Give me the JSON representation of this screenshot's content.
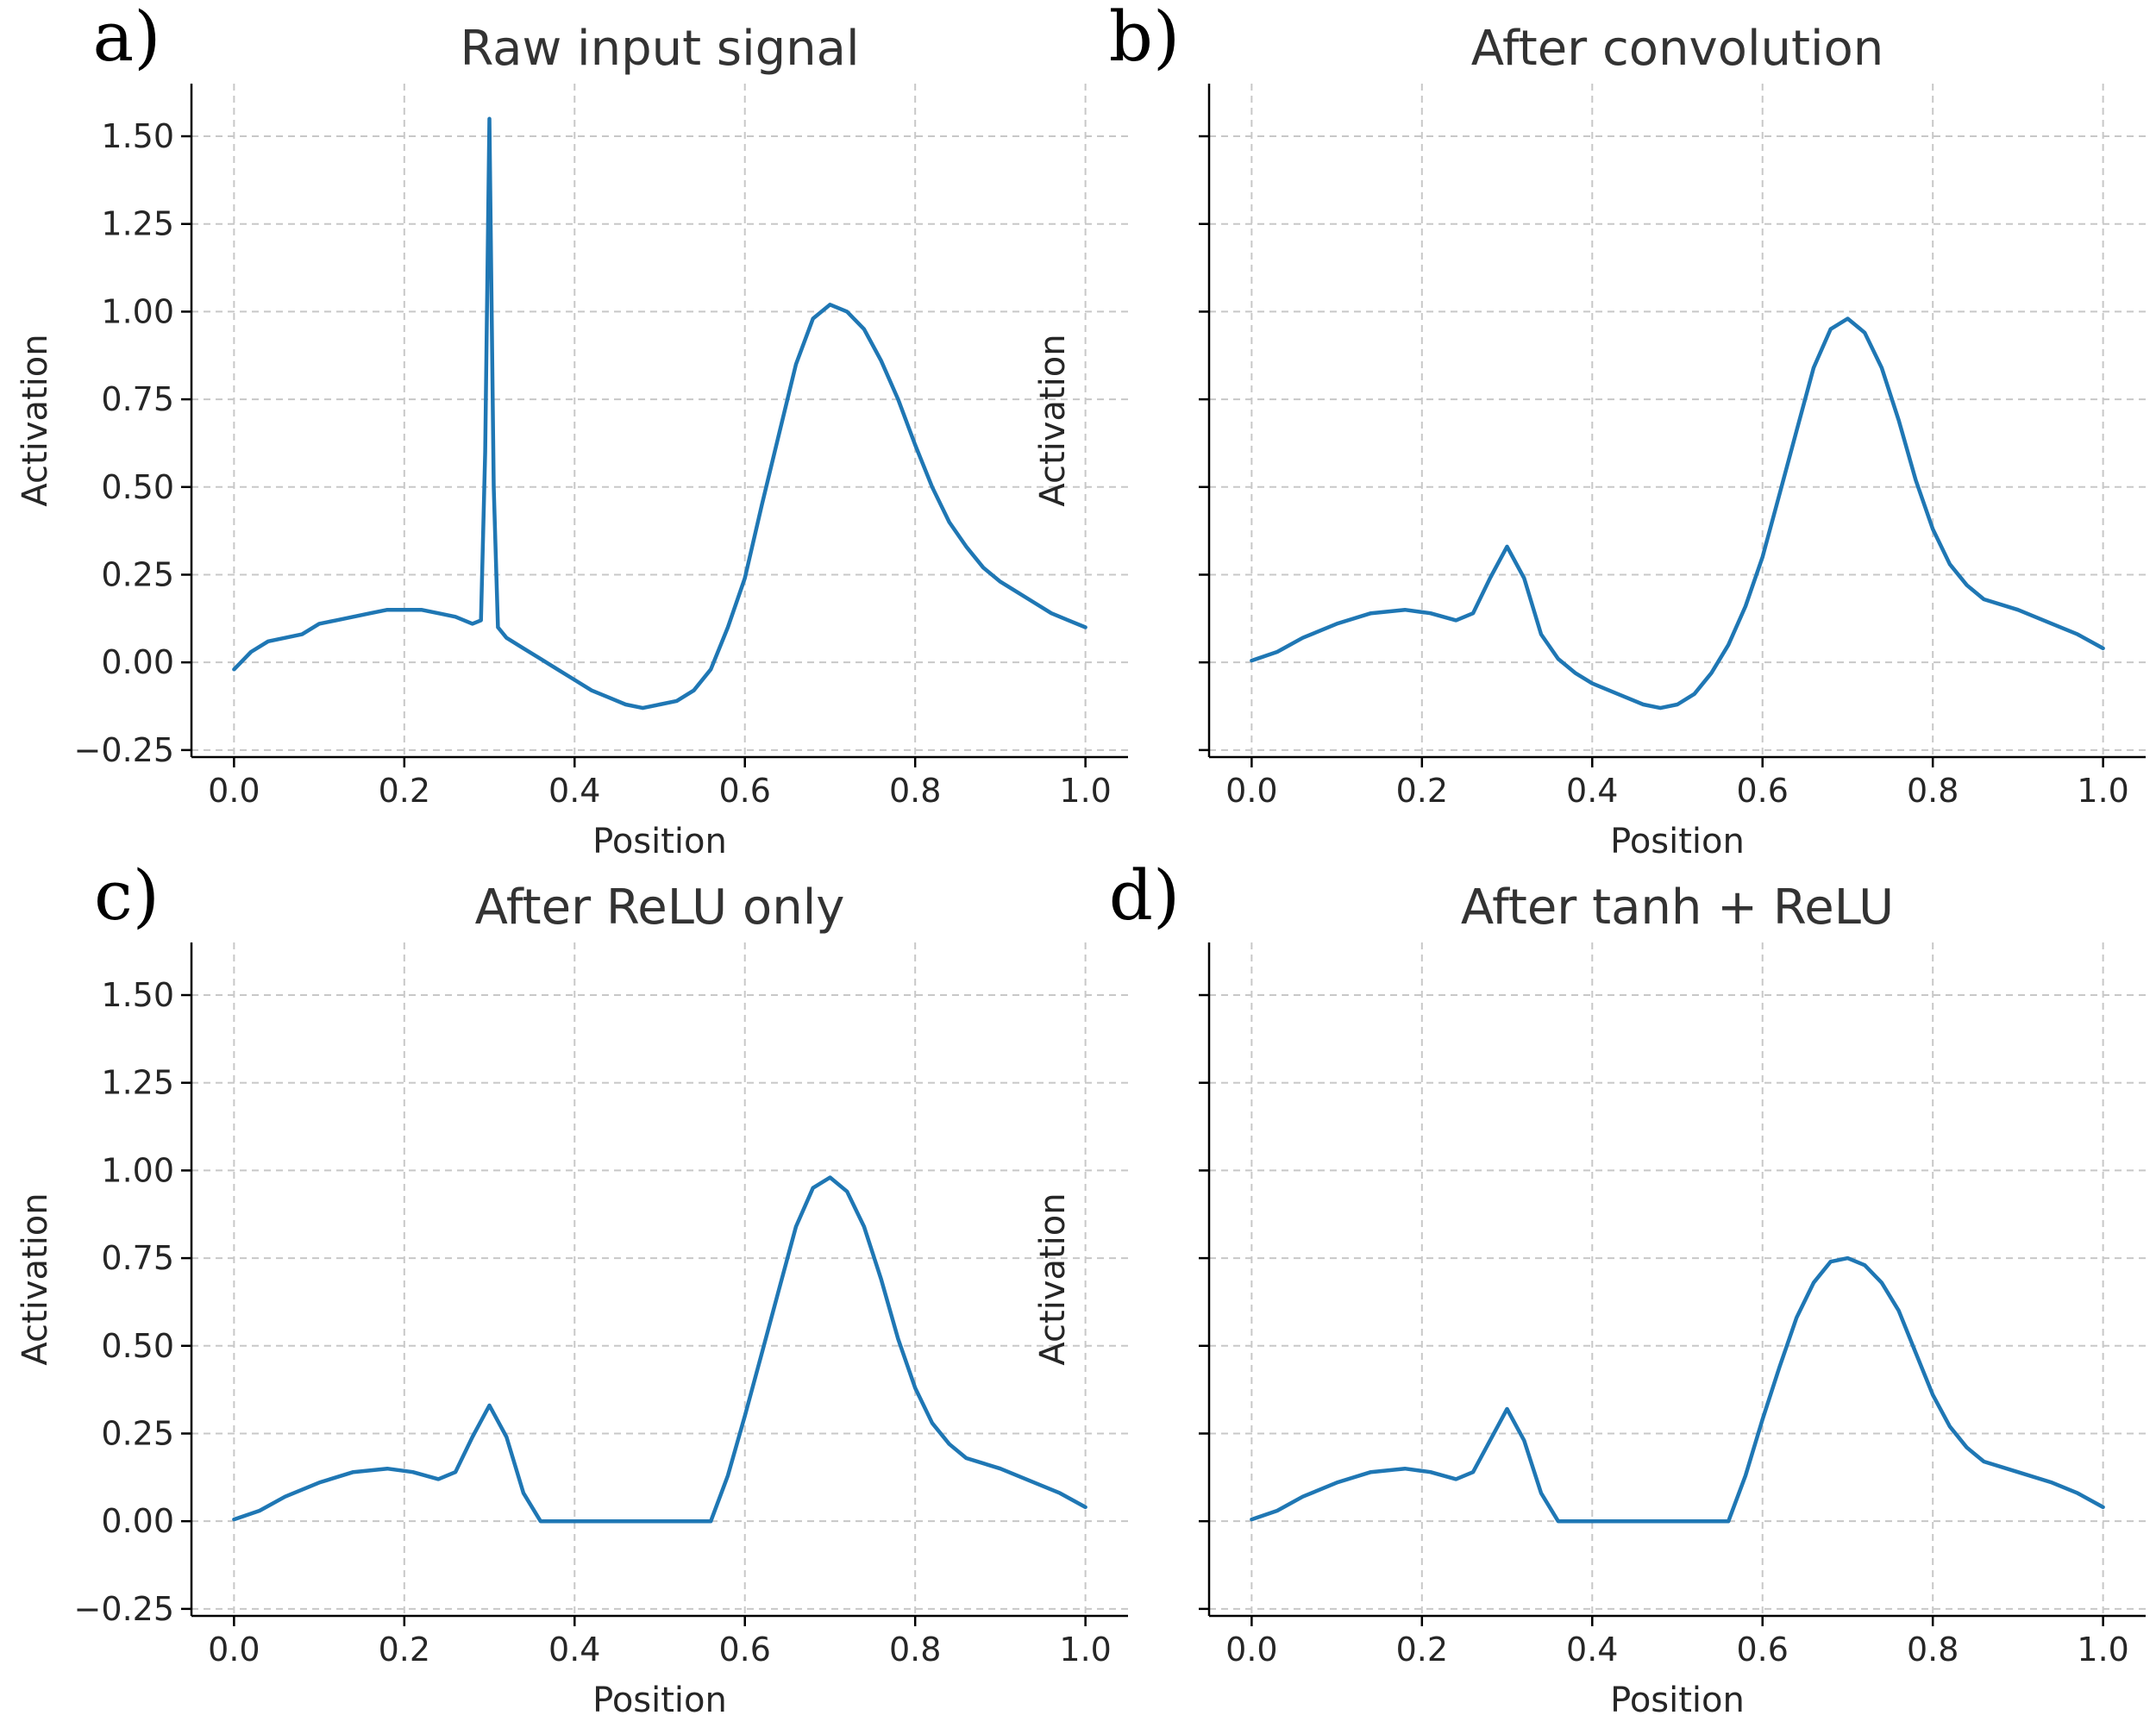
{
  "chart_data": [
    {
      "type": "line",
      "letter": "a)",
      "title": "Raw input signal",
      "xlabel": "Position",
      "ylabel": "Activation",
      "xlim": [
        -0.05,
        1.05
      ],
      "ylim": [
        -0.27,
        1.65
      ],
      "xticks": [
        "0.0",
        "0.2",
        "0.4",
        "0.6",
        "0.8",
        "1.0"
      ],
      "yticks": [
        "−0.25",
        "0.00",
        "0.25",
        "0.50",
        "0.75",
        "1.00",
        "1.25",
        "1.50"
      ],
      "show_ytick_labels": true,
      "grid": true,
      "color": "#1f77b4",
      "x": [
        0.0,
        0.02,
        0.04,
        0.06,
        0.08,
        0.1,
        0.12,
        0.14,
        0.16,
        0.18,
        0.2,
        0.22,
        0.24,
        0.26,
        0.28,
        0.29,
        0.295,
        0.3,
        0.305,
        0.31,
        0.32,
        0.34,
        0.36,
        0.38,
        0.4,
        0.42,
        0.44,
        0.46,
        0.48,
        0.5,
        0.52,
        0.54,
        0.56,
        0.58,
        0.6,
        0.62,
        0.64,
        0.66,
        0.68,
        0.7,
        0.72,
        0.74,
        0.76,
        0.78,
        0.8,
        0.82,
        0.84,
        0.86,
        0.88,
        0.9,
        0.92,
        0.94,
        0.96,
        0.98,
        1.0
      ],
      "y": [
        -0.02,
        0.03,
        0.06,
        0.07,
        0.08,
        0.11,
        0.12,
        0.13,
        0.14,
        0.15,
        0.15,
        0.15,
        0.14,
        0.13,
        0.11,
        0.12,
        0.6,
        1.55,
        0.5,
        0.1,
        0.07,
        0.04,
        0.01,
        -0.02,
        -0.05,
        -0.08,
        -0.1,
        -0.12,
        -0.13,
        -0.12,
        -0.11,
        -0.08,
        -0.02,
        0.1,
        0.24,
        0.45,
        0.65,
        0.85,
        0.98,
        1.02,
        1.0,
        0.95,
        0.86,
        0.75,
        0.62,
        0.5,
        0.4,
        0.33,
        0.27,
        0.23,
        0.2,
        0.17,
        0.14,
        0.12,
        0.1
      ]
    },
    {
      "type": "line",
      "letter": "b)",
      "title": "After convolution",
      "xlabel": "Position",
      "ylabel": "Activation",
      "xlim": [
        -0.05,
        1.05
      ],
      "ylim": [
        -0.27,
        1.65
      ],
      "xticks": [
        "0.0",
        "0.2",
        "0.4",
        "0.6",
        "0.8",
        "1.0"
      ],
      "yticks": [
        "−0.25",
        "0.00",
        "0.25",
        "0.50",
        "0.75",
        "1.00",
        "1.25",
        "1.50"
      ],
      "show_ytick_labels": false,
      "grid": true,
      "color": "#1f77b4",
      "x": [
        0.0,
        0.03,
        0.06,
        0.1,
        0.14,
        0.18,
        0.21,
        0.24,
        0.26,
        0.28,
        0.3,
        0.32,
        0.34,
        0.36,
        0.38,
        0.4,
        0.43,
        0.46,
        0.48,
        0.5,
        0.52,
        0.54,
        0.56,
        0.58,
        0.6,
        0.62,
        0.64,
        0.66,
        0.68,
        0.7,
        0.72,
        0.74,
        0.76,
        0.78,
        0.8,
        0.82,
        0.84,
        0.86,
        0.9,
        0.94,
        0.97,
        1.0
      ],
      "y": [
        0.005,
        0.03,
        0.07,
        0.11,
        0.14,
        0.15,
        0.14,
        0.12,
        0.14,
        0.24,
        0.33,
        0.24,
        0.08,
        0.01,
        -0.03,
        -0.06,
        -0.09,
        -0.12,
        -0.13,
        -0.12,
        -0.09,
        -0.03,
        0.05,
        0.16,
        0.3,
        0.48,
        0.66,
        0.84,
        0.95,
        0.98,
        0.94,
        0.84,
        0.69,
        0.52,
        0.38,
        0.28,
        0.22,
        0.18,
        0.15,
        0.11,
        0.08,
        0.04
      ]
    },
    {
      "type": "line",
      "letter": "c)",
      "title": "After ReLU only",
      "xlabel": "Position",
      "ylabel": "Activation",
      "xlim": [
        -0.05,
        1.05
      ],
      "ylim": [
        -0.27,
        1.65
      ],
      "xticks": [
        "0.0",
        "0.2",
        "0.4",
        "0.6",
        "0.8",
        "1.0"
      ],
      "yticks": [
        "−0.25",
        "0.00",
        "0.25",
        "0.50",
        "0.75",
        "1.00",
        "1.25",
        "1.50"
      ],
      "show_ytick_labels": true,
      "grid": true,
      "color": "#1f77b4",
      "x": [
        0.0,
        0.03,
        0.06,
        0.1,
        0.14,
        0.18,
        0.21,
        0.24,
        0.26,
        0.28,
        0.3,
        0.32,
        0.34,
        0.36,
        0.38,
        0.4,
        0.43,
        0.46,
        0.48,
        0.5,
        0.52,
        0.54,
        0.56,
        0.58,
        0.6,
        0.62,
        0.64,
        0.66,
        0.68,
        0.7,
        0.72,
        0.74,
        0.76,
        0.78,
        0.8,
        0.82,
        0.84,
        0.86,
        0.9,
        0.94,
        0.97,
        1.0
      ],
      "y": [
        0.005,
        0.03,
        0.07,
        0.11,
        0.14,
        0.15,
        0.14,
        0.12,
        0.14,
        0.24,
        0.33,
        0.24,
        0.08,
        0.0,
        0.0,
        0.0,
        0.0,
        0.0,
        0.0,
        0.0,
        0.0,
        0.0,
        0.0,
        0.13,
        0.3,
        0.48,
        0.66,
        0.84,
        0.95,
        0.98,
        0.94,
        0.84,
        0.69,
        0.52,
        0.38,
        0.28,
        0.22,
        0.18,
        0.15,
        0.11,
        0.08,
        0.04
      ]
    },
    {
      "type": "line",
      "letter": "d)",
      "title": "After tanh + ReLU",
      "xlabel": "Position",
      "ylabel": "Activation",
      "xlim": [
        -0.05,
        1.05
      ],
      "ylim": [
        -0.27,
        1.65
      ],
      "xticks": [
        "0.0",
        "0.2",
        "0.4",
        "0.6",
        "0.8",
        "1.0"
      ],
      "yticks": [
        "−0.25",
        "0.00",
        "0.25",
        "0.50",
        "0.75",
        "1.00",
        "1.25",
        "1.50"
      ],
      "show_ytick_labels": false,
      "grid": true,
      "color": "#1f77b4",
      "x": [
        0.0,
        0.03,
        0.06,
        0.1,
        0.14,
        0.18,
        0.21,
        0.24,
        0.26,
        0.28,
        0.3,
        0.32,
        0.34,
        0.36,
        0.38,
        0.4,
        0.43,
        0.46,
        0.48,
        0.5,
        0.52,
        0.54,
        0.56,
        0.58,
        0.6,
        0.62,
        0.64,
        0.66,
        0.68,
        0.7,
        0.72,
        0.74,
        0.76,
        0.78,
        0.8,
        0.82,
        0.84,
        0.86,
        0.9,
        0.94,
        0.97,
        1.0
      ],
      "y": [
        0.005,
        0.03,
        0.07,
        0.11,
        0.14,
        0.15,
        0.14,
        0.12,
        0.14,
        0.23,
        0.32,
        0.23,
        0.08,
        0.0,
        0.0,
        0.0,
        0.0,
        0.0,
        0.0,
        0.0,
        0.0,
        0.0,
        0.0,
        0.13,
        0.29,
        0.44,
        0.58,
        0.68,
        0.74,
        0.75,
        0.73,
        0.68,
        0.6,
        0.48,
        0.36,
        0.27,
        0.21,
        0.17,
        0.14,
        0.11,
        0.08,
        0.04
      ]
    }
  ]
}
